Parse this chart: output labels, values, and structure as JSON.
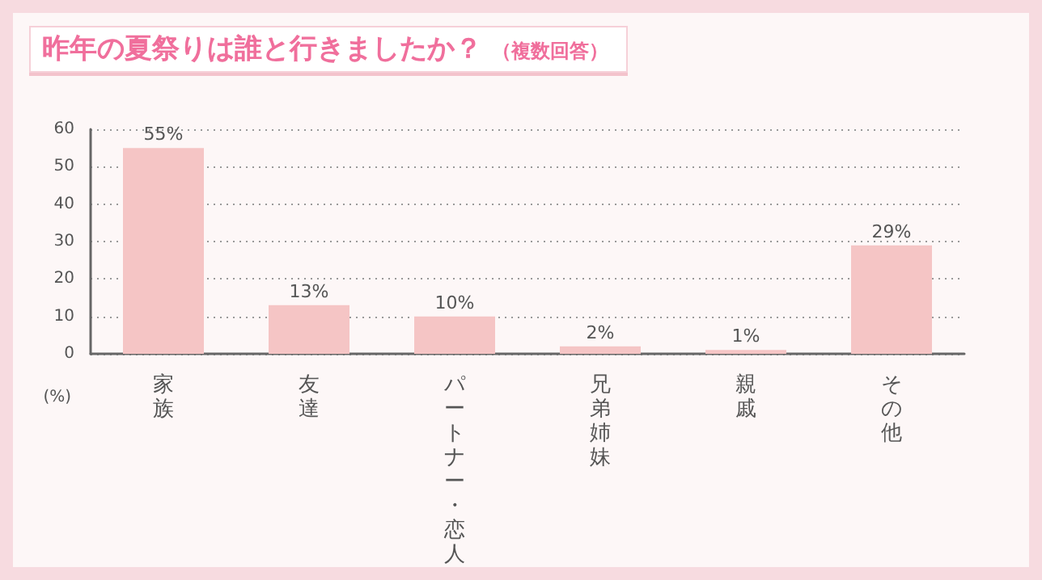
{
  "chart_data": {
    "type": "bar",
    "title": "昨年の夏祭りは誰と行きましたか？",
    "subtitle": "（複数回答）",
    "ylabel": "(%)",
    "categories": [
      "家族",
      "友達",
      "パートナー・恋人",
      "兄弟姉妹",
      "親戚",
      "その他"
    ],
    "values": [
      55,
      13,
      10,
      2,
      1,
      29
    ],
    "color": "#f5c5c5",
    "value_labels": [
      "55%",
      "13%",
      "10%",
      "2%",
      "1%",
      "29%"
    ],
    "ylim": [
      0,
      60
    ],
    "yticks": [
      0,
      10,
      20,
      30,
      40,
      50,
      60
    ],
    "grid": "y"
  }
}
